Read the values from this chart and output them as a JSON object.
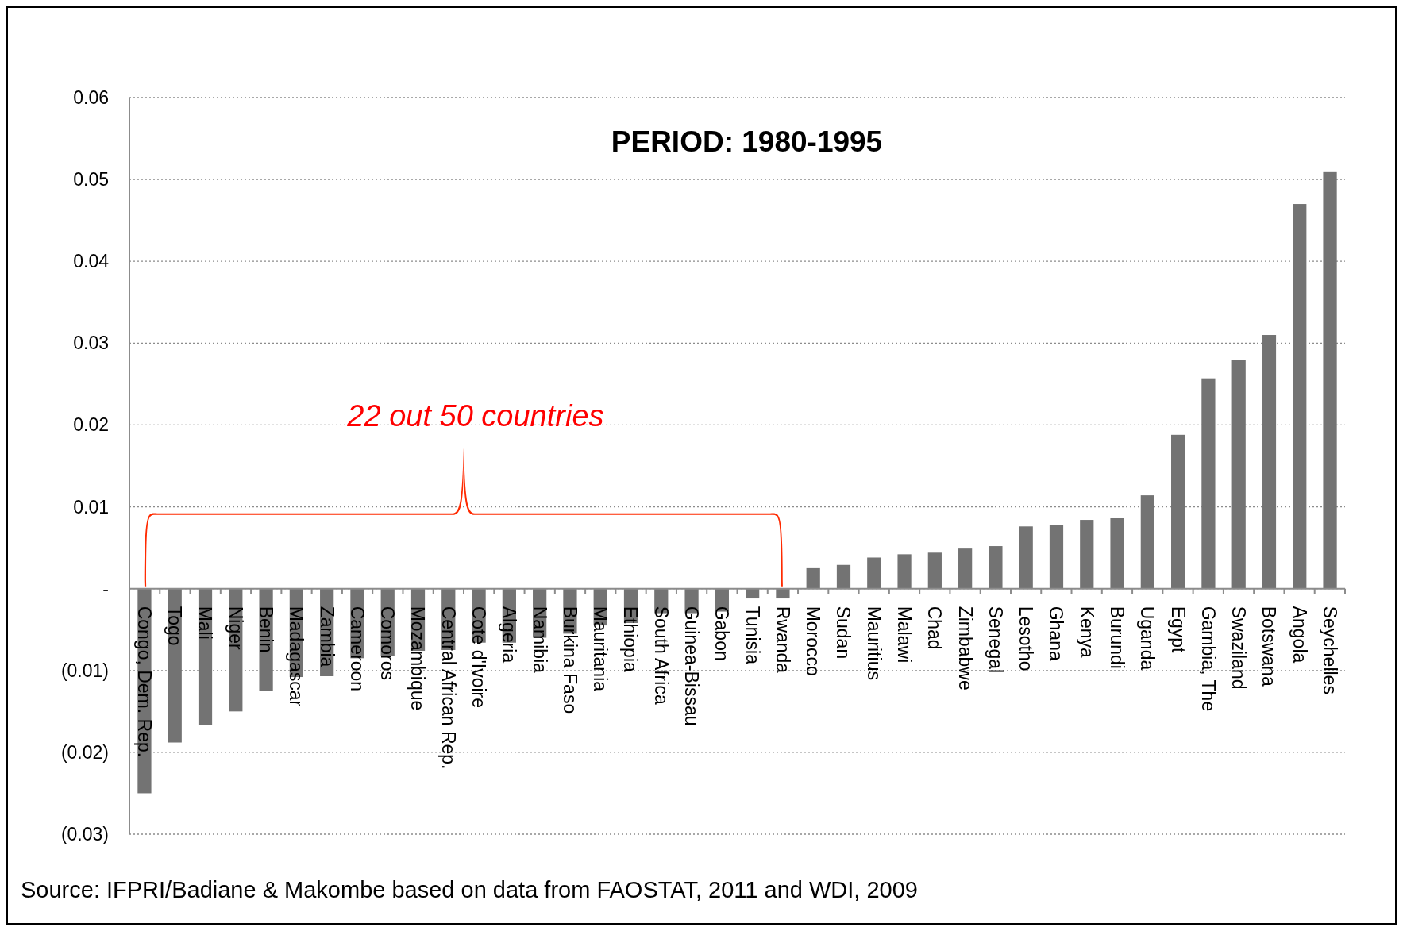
{
  "chart_data": {
    "type": "bar",
    "title": "PERIOD: 1980-1995",
    "categories": [
      "Congo, Dem. Rep.",
      "Togo",
      "Mali",
      "Niger",
      "Benin",
      "Madagascar",
      "Zambia",
      "Cameroon",
      "Comoros",
      "Mozambique",
      "Central African Rep.",
      "Cote d'Ivoire",
      "Algeria",
      "Namibia",
      "Burkina Faso",
      "Mauritania",
      "Ethiopia",
      "South Africa",
      "Guinea-Bissau",
      "Gabon",
      "Tunisia",
      "Rwanda",
      "Morocco",
      "Sudan",
      "Mauritius",
      "Malawi",
      "Chad",
      "Zimbabwe",
      "Senegal",
      "Lesotho",
      "Ghana",
      "Kenya",
      "Burundi",
      "Uganda",
      "Egypt",
      "Gambia, The",
      "Swaziland",
      "Botswana",
      "Angola",
      "Seychelles"
    ],
    "values": [
      -0.025,
      -0.0188,
      -0.0167,
      -0.015,
      -0.0125,
      -0.0108,
      -0.0107,
      -0.0085,
      -0.0082,
      -0.0076,
      -0.0075,
      -0.0066,
      -0.0066,
      -0.006,
      -0.0055,
      -0.0045,
      -0.0042,
      -0.003,
      -0.003,
      -0.0028,
      -0.0012,
      -0.0012,
      0.0025,
      0.0029,
      0.0038,
      0.0042,
      0.0044,
      0.0049,
      0.0052,
      0.0076,
      0.0078,
      0.0084,
      0.0086,
      0.0114,
      0.0188,
      0.0257,
      0.0279,
      0.031,
      0.047,
      0.0509
    ],
    "color": "#737373",
    "ylim": [
      -0.03,
      0.06
    ],
    "yticks": [
      {
        "value": -0.03,
        "label": "(0.03)"
      },
      {
        "value": -0.02,
        "label": "(0.02)"
      },
      {
        "value": -0.01,
        "label": "(0.01)"
      },
      {
        "value": 0,
        "label": "-"
      },
      0.01,
      0.02,
      0.03,
      0.04,
      0.05,
      0.06
    ],
    "grid": "y",
    "annotations": [
      "22 out 50 countries",
      "Source: IFPRI/Badiane & Makombe based on data from FAOSTAT, 2011 and WDI, 2009"
    ]
  }
}
